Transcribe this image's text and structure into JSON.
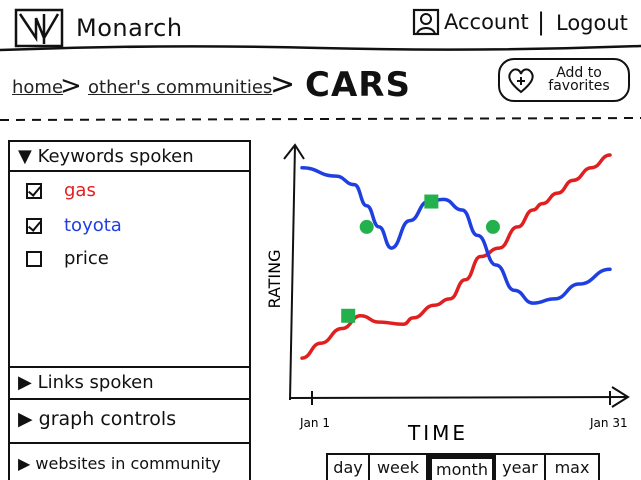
{
  "header": {
    "app_name": "Monarch",
    "account_label": "Account",
    "separator": "|",
    "logout_label": "Logout"
  },
  "breadcrumb": {
    "home": "home",
    "arrow": ">",
    "others": "other's communities",
    "current": "CARS"
  },
  "favorites": {
    "label": "Add to\nfavorites"
  },
  "sidebar": {
    "keywords_title": "Keywords spoken",
    "keywords": [
      {
        "label": "gas",
        "checked": true,
        "color": "#e02020"
      },
      {
        "label": "toyota",
        "checked": true,
        "color": "#1f3fe0"
      },
      {
        "label": "price",
        "checked": false,
        "color": "#111111"
      }
    ],
    "links_title": "Links spoken",
    "graph_controls_title": "graph controls",
    "websites_title": "websites in community"
  },
  "chart_data": {
    "type": "line",
    "xlabel": "TIME",
    "ylabel": "RATING",
    "x_start_label": "Jan 1",
    "x_end_label": "Jan 31",
    "grid": false,
    "marker_color": "#22b14c",
    "series": [
      {
        "name": "gas",
        "color": "#e02020",
        "x": [
          0,
          6,
          13,
          19,
          25,
          33,
          36,
          43,
          48,
          53,
          58,
          64,
          70,
          75,
          78,
          83,
          88,
          94,
          100
        ],
        "y": [
          8,
          15,
          22,
          28,
          25,
          24,
          27,
          33,
          36,
          45,
          56,
          60,
          70,
          78,
          81,
          86,
          92,
          98,
          104
        ]
      },
      {
        "name": "toyota",
        "color": "#1f3fe0",
        "x": [
          0,
          11,
          17,
          21,
          25,
          29,
          35,
          41,
          46,
          52,
          57,
          63,
          69,
          75,
          82,
          90,
          100
        ],
        "y": [
          98,
          94,
          90,
          80,
          70,
          60,
          73,
          82,
          83,
          78,
          66,
          52,
          40,
          34,
          36,
          43,
          50
        ]
      }
    ],
    "markers": [
      {
        "x": 15,
        "y": 28
      },
      {
        "x": 21,
        "y": 70
      },
      {
        "x": 42,
        "y": 82
      },
      {
        "x": 62,
        "y": 70
      }
    ]
  },
  "time_tabs": {
    "items": [
      "day",
      "week",
      "month",
      "year",
      "max"
    ],
    "active": "month"
  }
}
